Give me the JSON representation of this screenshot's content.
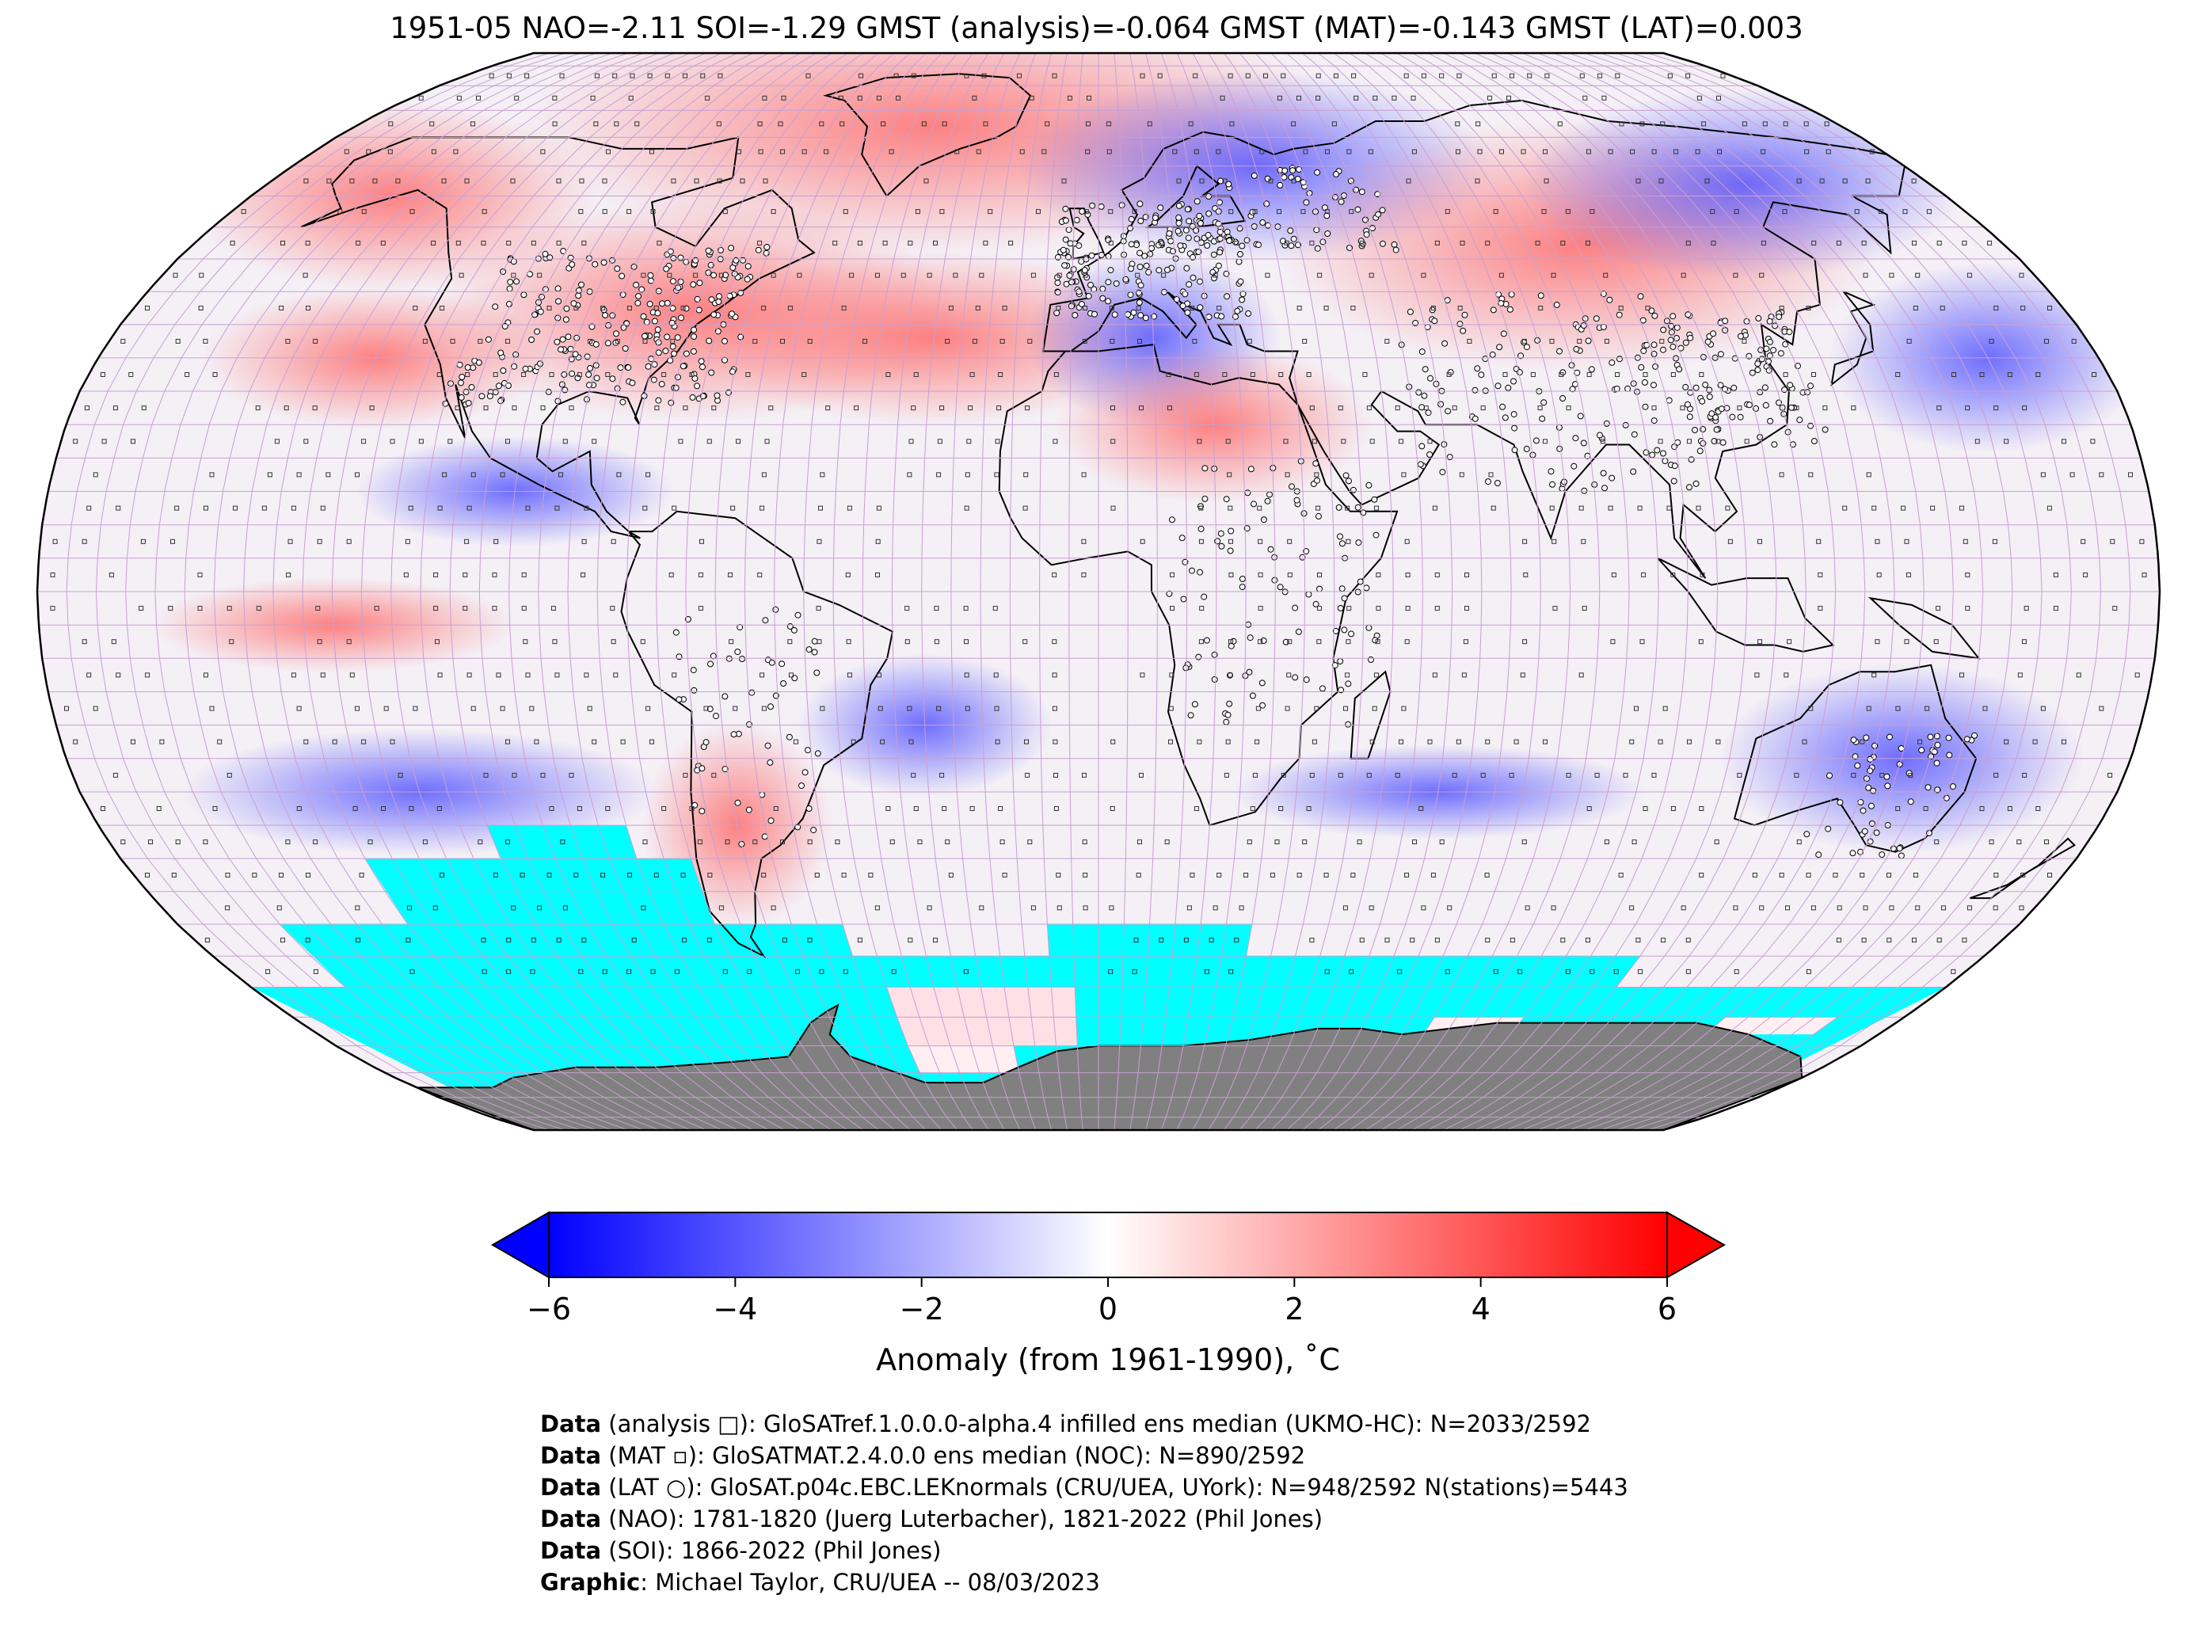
{
  "title": "1951-05 NAO=-2.11 SOI=-1.29 GMST (analysis)=-0.064 GMST (MAT)=-0.143 GMST (LAT)=0.003",
  "map": {
    "projection": "Robinson",
    "colors": {
      "ocean_cyan": "#00ffff",
      "antarctica": "#808080",
      "grid": "#c8a0d0",
      "coast": "#000000",
      "cold": "#0000ff",
      "warm": "#ff0000",
      "neutral": "#ffffff"
    },
    "anomaly_regions": [
      {
        "name": "north-atlantic-arctic",
        "sign": "warm",
        "value": 2.5
      },
      {
        "name": "north-america-east",
        "sign": "warm",
        "value": 2.0
      },
      {
        "name": "scandinavia-russia",
        "sign": "cold",
        "value": -3.5
      },
      {
        "name": "central-asia",
        "sign": "warm",
        "value": 2.5
      },
      {
        "name": "east-asia-pacific",
        "sign": "cold",
        "value": -1.5
      },
      {
        "name": "north-africa",
        "sign": "warm",
        "value": 1.2
      },
      {
        "name": "south-america-argentina",
        "sign": "warm",
        "value": 2.0
      },
      {
        "name": "south-atlantic",
        "sign": "cold",
        "value": -2.0
      },
      {
        "name": "australia",
        "sign": "cold",
        "value": -2.0
      }
    ]
  },
  "colorbar": {
    "label": "Anomaly (from 1961-1990), ˚C",
    "ticks": [
      "−6",
      "−4",
      "−2",
      "0",
      "2",
      "4",
      "6"
    ],
    "min": -6,
    "max": 6,
    "extend": "both",
    "low_color": "#0000ff",
    "mid_color": "#ffffff",
    "high_color": "#ff0000"
  },
  "footer": [
    {
      "key": "Data",
      "text": " (analysis □): GloSATref.1.0.0.0-alpha.4 infilled ens median (UKMO-HC): N=2033/2592"
    },
    {
      "key": "Data",
      "text": " (MAT ▫): GloSATMAT.2.4.0.0 ens median (NOC): N=890/2592"
    },
    {
      "key": "Data",
      "text": " (LAT ○): GloSAT.p04c.EBC.LEKnormals (CRU/UEA, UYork): N=948/2592 N(stations)=5443"
    },
    {
      "key": "Data",
      "text": " (NAO): 1781-1820 (Juerg Luterbacher), 1821-2022 (Phil Jones)"
    },
    {
      "key": "Data",
      "text": " (SOI): 1866-2022 (Phil Jones)"
    },
    {
      "key": "Graphic",
      "text": ": Michael Taylor, CRU/UEA -- 08/03/2023"
    }
  ]
}
